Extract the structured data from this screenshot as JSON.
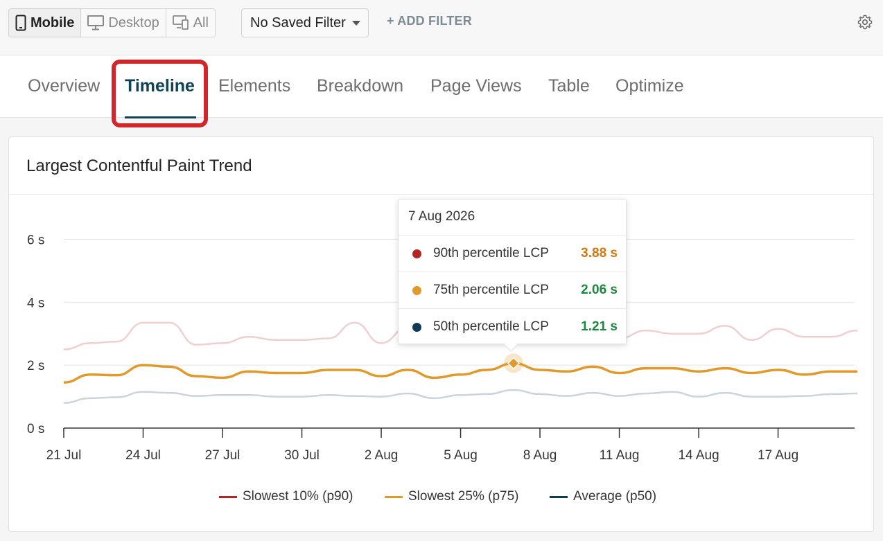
{
  "device_filter": {
    "mobile_label": "Mobile",
    "desktop_label": "Desktop",
    "all_label": "All",
    "selected": "Mobile"
  },
  "saved_filter": {
    "value": "No Saved Filter"
  },
  "add_filter_label": "+ ADD FILTER",
  "tabs": [
    {
      "label": "Overview"
    },
    {
      "label": "Timeline"
    },
    {
      "label": "Elements"
    },
    {
      "label": "Breakdown"
    },
    {
      "label": "Page Views"
    },
    {
      "label": "Table"
    },
    {
      "label": "Optimize"
    }
  ],
  "active_tab": "Timeline",
  "colors": {
    "accent": "#0f4259",
    "highlight": "#d1262b",
    "p90": "#b52424",
    "p75": "#e09a2c",
    "p50": "#0f3b57",
    "value_orange": "#d4780b",
    "value_green": "#1a8a3c"
  },
  "card": {
    "title": "Largest Contentful Paint Trend"
  },
  "tooltip": {
    "date": "7 Aug 2026",
    "rows": [
      {
        "label": "90th percentile LCP",
        "value": "3.88 s",
        "dot_color": "#b52424",
        "value_color": "#d4780b"
      },
      {
        "label": "75th percentile LCP",
        "value": "2.06 s",
        "dot_color": "#e09a2c",
        "value_color": "#1a8a3c"
      },
      {
        "label": "50th percentile LCP",
        "value": "1.21 s",
        "dot_color": "#0f3b57",
        "value_color": "#1a8a3c"
      }
    ]
  },
  "legend": [
    {
      "label": "Slowest 10% (p90)",
      "color": "#b52424"
    },
    {
      "label": "Slowest 25% (p75)",
      "color": "#e09a2c"
    },
    {
      "label": "Average (p50)",
      "color": "#0f3b57"
    }
  ],
  "chart_data": {
    "type": "line",
    "title": "Largest Contentful Paint Trend",
    "xlabel": "",
    "ylabel": "",
    "unit": "s",
    "ylim": [
      0,
      7
    ],
    "yticks": [
      0,
      2,
      4,
      6
    ],
    "ytick_labels": [
      "0 s",
      "2 s",
      "4 s",
      "6 s"
    ],
    "x": [
      "21 Jul",
      "22 Jul",
      "23 Jul",
      "24 Jul",
      "25 Jul",
      "26 Jul",
      "27 Jul",
      "28 Jul",
      "29 Jul",
      "30 Jul",
      "31 Jul",
      "1 Aug",
      "2 Aug",
      "3 Aug",
      "4 Aug",
      "5 Aug",
      "6 Aug",
      "7 Aug",
      "8 Aug",
      "9 Aug",
      "10 Aug",
      "11 Aug",
      "12 Aug",
      "13 Aug",
      "14 Aug",
      "15 Aug",
      "16 Aug",
      "17 Aug",
      "18 Aug",
      "19 Aug",
      "20 Aug"
    ],
    "xtick_labels": [
      "21 Jul",
      "24 Jul",
      "27 Jul",
      "30 Jul",
      "2 Aug",
      "5 Aug",
      "8 Aug",
      "11 Aug",
      "14 Aug",
      "17 Aug"
    ],
    "grid": true,
    "legend_position": "bottom",
    "highlighted_point": {
      "x": "7 Aug",
      "series": "Slowest 25% (p75)",
      "y": 2.06
    },
    "series": [
      {
        "name": "Slowest 10% (p90)",
        "color_key": "p90",
        "style": "faded",
        "values": [
          2.5,
          2.7,
          2.75,
          3.35,
          3.35,
          2.65,
          2.7,
          2.9,
          2.8,
          2.8,
          2.85,
          3.35,
          2.7,
          3.2,
          3.0,
          3.3,
          3.5,
          3.88,
          3.1,
          2.8,
          3.0,
          2.85,
          3.1,
          3.0,
          3.0,
          3.25,
          2.8,
          3.15,
          2.9,
          2.9,
          3.1
        ]
      },
      {
        "name": "Slowest 25% (p75)",
        "color_key": "p75",
        "style": "solid",
        "values": [
          1.45,
          1.7,
          1.68,
          2.0,
          1.95,
          1.65,
          1.6,
          1.8,
          1.75,
          1.75,
          1.85,
          1.85,
          1.65,
          1.85,
          1.6,
          1.7,
          1.85,
          2.06,
          1.85,
          1.8,
          1.95,
          1.75,
          1.9,
          1.9,
          1.8,
          1.9,
          1.75,
          1.85,
          1.7,
          1.8,
          1.8
        ]
      },
      {
        "name": "Average (p50)",
        "color_key": "p50",
        "style": "faded",
        "values": [
          0.8,
          0.95,
          0.98,
          1.15,
          1.12,
          1.02,
          1.05,
          1.05,
          1.0,
          1.0,
          1.05,
          1.02,
          1.0,
          1.1,
          0.95,
          1.05,
          1.08,
          1.21,
          1.08,
          1.02,
          1.12,
          1.02,
          1.1,
          1.15,
          1.0,
          1.12,
          1.0,
          1.0,
          1.02,
          1.08,
          1.1
        ]
      }
    ]
  }
}
